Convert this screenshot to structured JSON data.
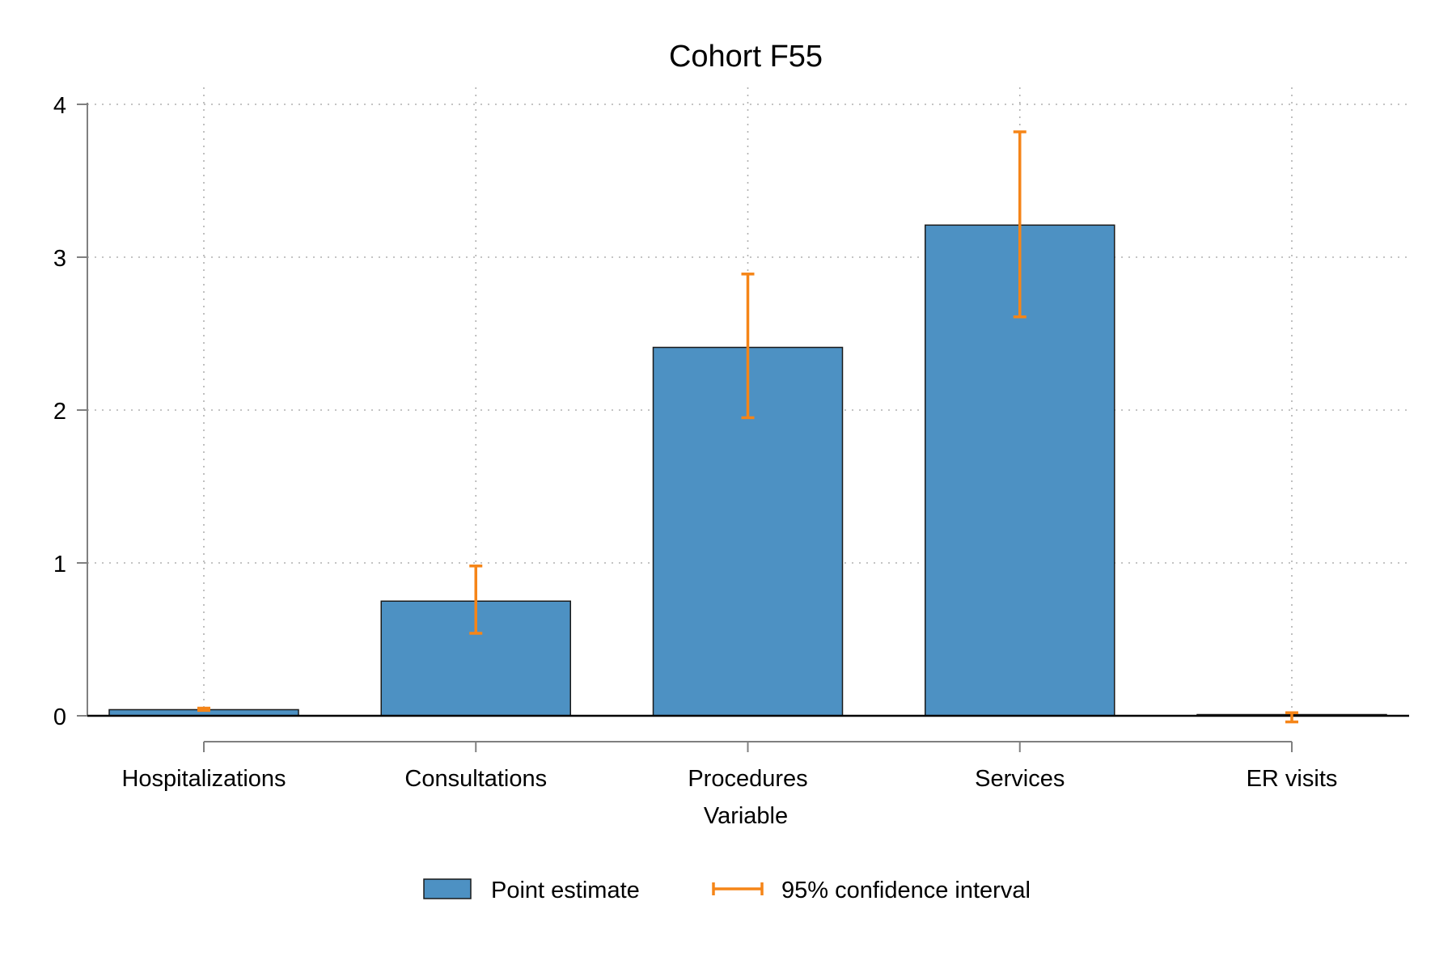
{
  "chart_data": {
    "type": "bar",
    "title": "Cohort F55",
    "xlabel": "Variable",
    "ylabel": "",
    "ylim": [
      0,
      4
    ],
    "yticks": [
      0,
      1,
      2,
      3,
      4
    ],
    "categories": [
      "Hospitalizations",
      "Consultations",
      "Procedures",
      "Services",
      "ER visits"
    ],
    "values": [
      0.04,
      0.75,
      2.41,
      3.21,
      0.0
    ],
    "ci_lower": [
      0.035,
      0.54,
      1.95,
      2.61,
      -0.04
    ],
    "ci_upper": [
      0.05,
      0.98,
      2.89,
      3.82,
      0.02
    ],
    "grid": true,
    "legend": {
      "position": "bottom",
      "items": [
        {
          "label": "Point estimate",
          "kind": "bar"
        },
        {
          "label": "95% confidence interval",
          "kind": "errorbar"
        }
      ]
    },
    "colors": {
      "bar_fill": "#4d91c3",
      "bar_edge": "#1a1a1a",
      "ci": "#f58518",
      "grid": "#b0b0b0",
      "axis": "#808080"
    }
  }
}
